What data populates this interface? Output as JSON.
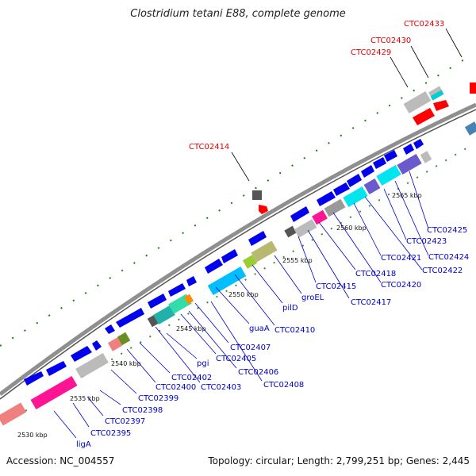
{
  "title": "Clostridium tetani E88, complete genome",
  "accession": "Accession: NC_004557",
  "summary": "Topology: circular; Length: 2,799,251 bp; Genes: 2,445",
  "colors": {
    "backbone": "#8f8f8f",
    "highlight_label": "#e60000",
    "gene_label": "#0000cc",
    "tick": "#1a7a1a"
  },
  "scale_labels": [
    "2530 kbp",
    "2535 kbp",
    "2540 kbp",
    "2545 kbp",
    "2550 kbp",
    "2555 kbp",
    "2560 kbp",
    "2565 kbp"
  ],
  "highlight_labels": [
    "CTC02433",
    "CTC02430",
    "CTC02429",
    "CTC02414"
  ],
  "gene_labels": [
    "ligA",
    "CTC02395",
    "CTC02397",
    "CTC02398",
    "CTC02399",
    "CTC02400",
    "CTC02402",
    "pgi",
    "CTC02403",
    "CTC02405",
    "CTC02406",
    "CTC02407",
    "CTC02408",
    "guaA",
    "CTC02410",
    "pilD",
    "groEL",
    "CTC02415",
    "CTC02417",
    "CTC02418",
    "CTC02420",
    "CTC02421",
    "CTC02422",
    "CTC02423",
    "CTC02424",
    "CTC02425"
  ]
}
